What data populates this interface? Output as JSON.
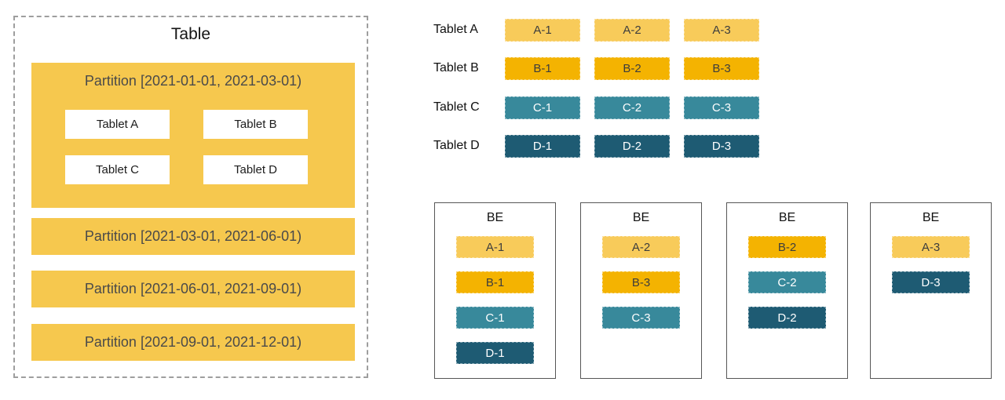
{
  "colors": {
    "partition_yellow": "#F6C84E",
    "replica_yellow_light": "#F8CB5A",
    "replica_yellow_dark": "#F4B301",
    "replica_teal": "#38899B",
    "replica_teal_dark": "#1E5B73",
    "text_dark": "#4A4A4A",
    "border_gray": "#9E9E9E",
    "be_border": "#565656"
  },
  "table_panel": {
    "title": "Table",
    "partitions": [
      {
        "label": "Partition [2021-01-01, 2021-03-01)",
        "tablets": [
          "Tablet A",
          "Tablet B",
          "Tablet C",
          "Tablet D"
        ]
      },
      {
        "label": "Partition [2021-03-01, 2021-06-01)"
      },
      {
        "label": "Partition [2021-06-01, 2021-09-01)"
      },
      {
        "label": "Partition [2021-09-01, 2021-12-01)"
      }
    ]
  },
  "replica_grid": {
    "rows": [
      {
        "label": "Tablet A",
        "tone": "a",
        "replicas": [
          "A-1",
          "A-2",
          "A-3"
        ]
      },
      {
        "label": "Tablet B",
        "tone": "b",
        "replicas": [
          "B-1",
          "B-2",
          "B-3"
        ]
      },
      {
        "label": "Tablet C",
        "tone": "c",
        "replicas": [
          "C-1",
          "C-2",
          "C-3"
        ]
      },
      {
        "label": "Tablet D",
        "tone": "d",
        "replicas": [
          "D-1",
          "D-2",
          "D-3"
        ]
      }
    ]
  },
  "be_nodes": [
    {
      "label": "BE",
      "chips": [
        {
          "text": "A-1",
          "tone": "a"
        },
        {
          "text": "B-1",
          "tone": "b"
        },
        {
          "text": "C-1",
          "tone": "c"
        },
        {
          "text": "D-1",
          "tone": "d"
        }
      ]
    },
    {
      "label": "BE",
      "chips": [
        {
          "text": "A-2",
          "tone": "a"
        },
        {
          "text": "B-3",
          "tone": "b"
        },
        {
          "text": "C-3",
          "tone": "c"
        }
      ]
    },
    {
      "label": "BE",
      "chips": [
        {
          "text": "B-2",
          "tone": "b"
        },
        {
          "text": "C-2",
          "tone": "c"
        },
        {
          "text": "D-2",
          "tone": "d"
        }
      ]
    },
    {
      "label": "BE",
      "chips": [
        {
          "text": "A-3",
          "tone": "a"
        },
        {
          "text": "D-3",
          "tone": "d"
        }
      ]
    }
  ]
}
